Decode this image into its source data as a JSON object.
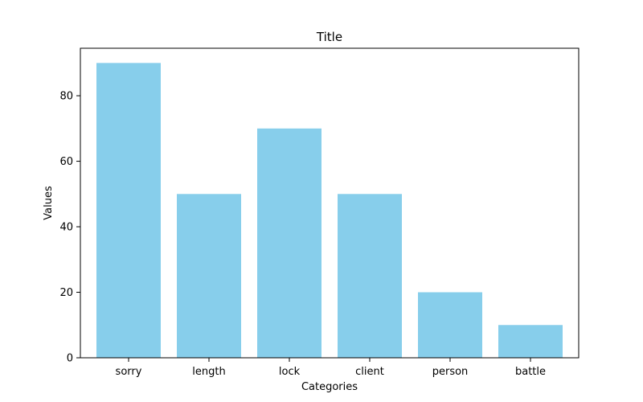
{
  "chart_data": {
    "type": "bar",
    "title": "Title",
    "xlabel": "Categories",
    "ylabel": "Values",
    "categories": [
      "sorry",
      "length",
      "lock",
      "client",
      "person",
      "battle"
    ],
    "values": [
      90,
      50,
      70,
      50,
      20,
      10
    ],
    "ylim": [
      0,
      94.5
    ],
    "yticks": [
      0,
      20,
      40,
      60,
      80
    ],
    "bar_color": "#87CEEB",
    "grid": false,
    "legend": "none"
  }
}
